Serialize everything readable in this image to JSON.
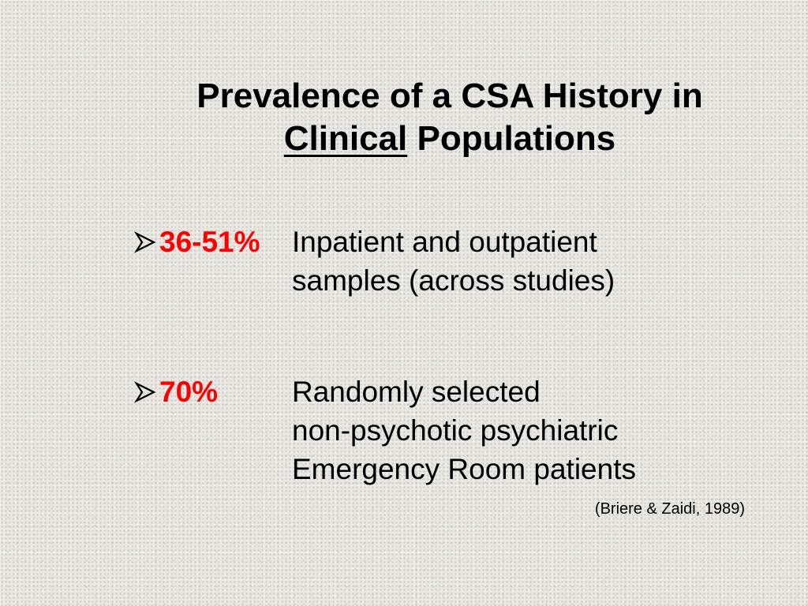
{
  "slide": {
    "title_line1": "Prevalence of a CSA History in",
    "title_line2_underlined": "Clinical",
    "title_line2_rest": " Populations",
    "bullets": [
      {
        "stat": "36-51%",
        "lines": [
          "Inpatient and outpatient",
          "samples (across studies)"
        ]
      },
      {
        "stat": "70%",
        "lines": [
          "Randomly selected",
          "non-psychotic psychiatric",
          "Emergency Room patients"
        ]
      }
    ],
    "citation": "(Briere & Zaidi, 1989)"
  },
  "colors": {
    "stat": "#ff0000",
    "text": "#000000"
  },
  "icons": {
    "bullet": "arrow-bullet-icon"
  }
}
